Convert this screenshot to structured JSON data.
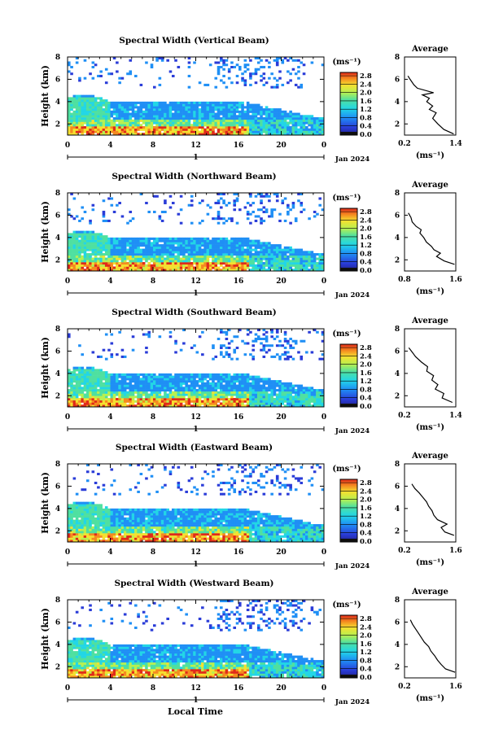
{
  "figure": {
    "xlabel": "Local Time",
    "date_label": "Jan 2024",
    "day_label": "1",
    "unit_label": "(ms⁻¹)"
  },
  "chart_data": [
    {
      "type": "heatmap",
      "title": "Spectral Width (Vertical Beam)",
      "xlabel": "",
      "ylabel": "Height (km)",
      "xlim": [
        0,
        24
      ],
      "ylim": [
        1,
        8
      ],
      "xticks": [
        "0",
        "4",
        "8",
        "12",
        "16",
        "20",
        "0"
      ],
      "yticks": [
        "2",
        "4",
        "6",
        "8"
      ],
      "colorbar": {
        "label": "(ms⁻¹)",
        "ticks": [
          "0.0",
          "0.4",
          "0.8",
          "1.2",
          "1.6",
          "2.0",
          "2.4",
          "2.8"
        ],
        "range": [
          0,
          3
        ]
      },
      "profile": {
        "title": "Average",
        "xlabel": "(ms⁻¹)",
        "xticks": [
          "0.2",
          "1.4"
        ],
        "xlim": [
          0.2,
          1.4
        ],
        "yticks": [
          "2",
          "4",
          "6",
          "8"
        ],
        "ylim": [
          1,
          8
        ],
        "height": [
          1.1,
          1.5,
          2.0,
          2.5,
          3.0,
          3.3,
          3.6,
          4.0,
          4.3,
          4.6,
          4.8,
          5.2,
          5.5,
          6.0,
          6.3
        ],
        "value": [
          1.35,
          1.12,
          0.98,
          0.86,
          0.94,
          0.78,
          0.86,
          0.72,
          0.78,
          0.62,
          0.88,
          0.5,
          0.42,
          0.33,
          0.28
        ]
      }
    },
    {
      "type": "heatmap",
      "title": "Spectral Width (Northward Beam)",
      "xlabel": "",
      "ylabel": "Height (km)",
      "xlim": [
        0,
        24
      ],
      "ylim": [
        1,
        8
      ],
      "xticks": [
        "0",
        "4",
        "8",
        "12",
        "16",
        "20",
        "0"
      ],
      "yticks": [
        "2",
        "4",
        "6",
        "8"
      ],
      "colorbar": {
        "label": "(ms⁻¹)",
        "ticks": [
          "0.0",
          "0.4",
          "0.8",
          "1.2",
          "1.6",
          "2.0",
          "2.4",
          "2.8"
        ],
        "range": [
          0,
          3
        ]
      },
      "profile": {
        "title": "Average",
        "xlabel": "(ms⁻¹)",
        "xticks": [
          "0.8",
          "1.6"
        ],
        "xlim": [
          0.8,
          1.6
        ],
        "yticks": [
          "2",
          "4",
          "6",
          "8"
        ],
        "ylim": [
          1,
          8
        ],
        "height": [
          1.6,
          1.9,
          2.3,
          2.6,
          2.9,
          3.2,
          3.6,
          4.0,
          4.4,
          4.7,
          5.0,
          5.4,
          5.8,
          6.2
        ],
        "value": [
          1.58,
          1.42,
          1.3,
          1.36,
          1.26,
          1.22,
          1.14,
          1.1,
          1.04,
          1.06,
          0.98,
          0.92,
          0.9,
          0.86
        ]
      }
    },
    {
      "type": "heatmap",
      "title": "Spectral Width (Southward Beam)",
      "xlabel": "",
      "ylabel": "Height (km)",
      "xlim": [
        0,
        24
      ],
      "ylim": [
        1,
        8
      ],
      "xticks": [
        "0",
        "4",
        "8",
        "12",
        "16",
        "20",
        "0"
      ],
      "yticks": [
        "2",
        "4",
        "6",
        "8"
      ],
      "colorbar": {
        "label": "(ms⁻¹)",
        "ticks": [
          "0.0",
          "0.4",
          "0.8",
          "1.2",
          "1.6",
          "2.0",
          "2.4",
          "2.8"
        ],
        "range": [
          0,
          3
        ]
      },
      "profile": {
        "title": "Average",
        "xlabel": "(ms⁻¹)",
        "xticks": [
          "0.2",
          "1.4"
        ],
        "xlim": [
          0.2,
          1.4
        ],
        "yticks": [
          "2",
          "4",
          "6",
          "8"
        ],
        "ylim": [
          1,
          8
        ],
        "height": [
          1.4,
          1.8,
          2.2,
          2.6,
          3.0,
          3.4,
          3.8,
          4.2,
          4.6,
          5.0,
          5.5,
          6.0,
          6.3
        ],
        "value": [
          1.32,
          1.08,
          1.12,
          0.92,
          0.98,
          0.84,
          0.88,
          0.72,
          0.74,
          0.6,
          0.46,
          0.36,
          0.3
        ]
      }
    },
    {
      "type": "heatmap",
      "title": "Spectral Width (Eastward Beam)",
      "xlabel": "",
      "ylabel": "Height (km)",
      "xlim": [
        0,
        24
      ],
      "ylim": [
        1,
        8
      ],
      "xticks": [
        "0",
        "4",
        "8",
        "12",
        "16",
        "20",
        "0"
      ],
      "yticks": [
        "2",
        "4",
        "6",
        "8"
      ],
      "colorbar": {
        "label": "(ms⁻¹)",
        "ticks": [
          "0.0",
          "0.4",
          "0.8",
          "1.2",
          "1.6",
          "2.0",
          "2.4",
          "2.8"
        ],
        "range": [
          0,
          3
        ]
      },
      "profile": {
        "title": "Average",
        "xlabel": "(ms⁻¹)",
        "xticks": [
          "0.2",
          "1.6"
        ],
        "xlim": [
          0.2,
          1.6
        ],
        "yticks": [
          "2",
          "4",
          "6",
          "8"
        ],
        "ylim": [
          1,
          8
        ],
        "height": [
          1.6,
          1.9,
          2.3,
          2.6,
          3.0,
          3.4,
          3.8,
          4.2,
          4.6,
          5.0,
          5.4,
          5.8,
          6.2
        ],
        "value": [
          1.55,
          1.3,
          1.2,
          1.36,
          1.1,
          1.0,
          0.95,
          0.86,
          0.8,
          0.7,
          0.6,
          0.48,
          0.4
        ]
      }
    },
    {
      "type": "heatmap",
      "title": "Spectral Width (Westward Beam)",
      "xlabel": "Local Time",
      "ylabel": "Height (km)",
      "xlim": [
        0,
        24
      ],
      "ylim": [
        1,
        8
      ],
      "xticks": [
        "0",
        "4",
        "8",
        "12",
        "16",
        "20",
        "0"
      ],
      "yticks": [
        "2",
        "4",
        "6",
        "8"
      ],
      "colorbar": {
        "label": "(ms⁻¹)",
        "ticks": [
          "0.0",
          "0.4",
          "0.8",
          "1.2",
          "1.6",
          "2.0",
          "2.4",
          "2.8"
        ],
        "range": [
          0,
          3
        ]
      },
      "profile": {
        "title": "Average",
        "xlabel": "(ms⁻¹)",
        "xticks": [
          "0.2",
          "1.6"
        ],
        "xlim": [
          0.2,
          1.6
        ],
        "yticks": [
          "2",
          "4",
          "6",
          "8"
        ],
        "ylim": [
          1,
          8
        ],
        "height": [
          1.5,
          1.8,
          2.2,
          2.6,
          3.0,
          3.4,
          3.8,
          4.2,
          4.6,
          5.0,
          5.4,
          5.8,
          6.2
        ],
        "value": [
          1.58,
          1.32,
          1.2,
          1.1,
          1.02,
          0.92,
          0.86,
          0.74,
          0.66,
          0.58,
          0.5,
          0.42,
          0.36
        ]
      }
    }
  ]
}
